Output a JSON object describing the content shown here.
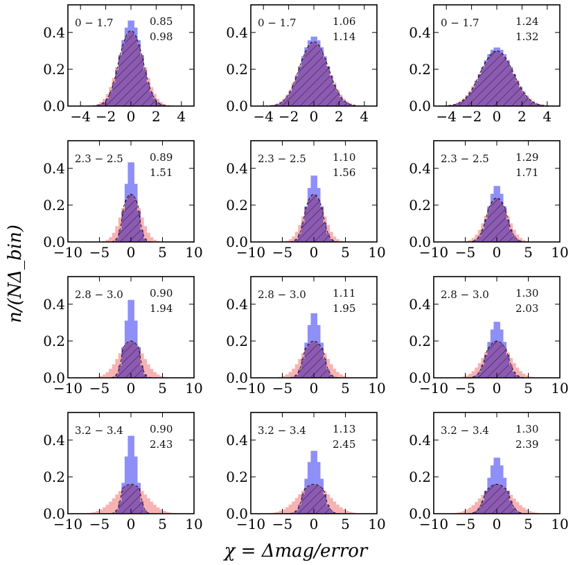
{
  "figure": {
    "xlabel": "χ = Δmag/error",
    "ylabel": "n/(NΔ_bin)"
  },
  "colors": {
    "blue": "#8f8ff8",
    "red": "#f7b3b3",
    "overlap": "#8c5ab3",
    "hatch": "#222222"
  },
  "chart_data": [
    {
      "type": "bar",
      "row": 0,
      "col": 0,
      "xlim": [
        -5,
        5
      ],
      "ylim": [
        0,
        0.55
      ],
      "xticks": [
        -4,
        -2,
        0,
        2,
        4
      ],
      "yticks": [
        0,
        0.2,
        0.4
      ],
      "range_label": "0 − 1.7",
      "value_top": "0.85",
      "value_bottom": "0.98",
      "series": [
        {
          "color": "blue",
          "peak": 0.47,
          "width": 0.85
        },
        {
          "color": "red",
          "peak": 0.41,
          "width": 0.98
        }
      ]
    },
    {
      "type": "bar",
      "row": 0,
      "col": 1,
      "xlim": [
        -5,
        5
      ],
      "ylim": [
        0,
        0.55
      ],
      "xticks": [
        -4,
        -2,
        0,
        2,
        4
      ],
      "yticks": [
        0,
        0.2,
        0.4
      ],
      "range_label": "0 − 1.7",
      "value_top": "1.06",
      "value_bottom": "1.14",
      "series": [
        {
          "color": "blue",
          "peak": 0.38,
          "width": 1.06
        },
        {
          "color": "red",
          "peak": 0.35,
          "width": 1.14
        }
      ]
    },
    {
      "type": "bar",
      "row": 0,
      "col": 2,
      "xlim": [
        -5,
        5
      ],
      "ylim": [
        0,
        0.55
      ],
      "xticks": [
        -4,
        -2,
        0,
        2,
        4
      ],
      "yticks": [
        0,
        0.2,
        0.4
      ],
      "range_label": "0 − 1.7",
      "value_top": "1.24",
      "value_bottom": "1.32",
      "series": [
        {
          "color": "blue",
          "peak": 0.32,
          "width": 1.24
        },
        {
          "color": "red",
          "peak": 0.3,
          "width": 1.32
        }
      ]
    },
    {
      "type": "bar",
      "row": 1,
      "col": 0,
      "xlim": [
        -10,
        10
      ],
      "ylim": [
        0,
        0.55
      ],
      "xticks": [
        -10,
        -5,
        0,
        5,
        10
      ],
      "yticks": [
        0,
        0.2,
        0.4
      ],
      "range_label": "2.3 − 2.5",
      "value_top": "0.89",
      "value_bottom": "1.51",
      "series": [
        {
          "color": "blue",
          "peak": 0.45,
          "width": 0.89
        },
        {
          "color": "red",
          "peak": 0.26,
          "width": 1.51
        }
      ]
    },
    {
      "type": "bar",
      "row": 1,
      "col": 1,
      "xlim": [
        -10,
        10
      ],
      "ylim": [
        0,
        0.55
      ],
      "xticks": [
        -10,
        -5,
        0,
        5,
        10
      ],
      "yticks": [
        0,
        0.2,
        0.4
      ],
      "range_label": "2.3 − 2.5",
      "value_top": "1.10",
      "value_bottom": "1.56",
      "series": [
        {
          "color": "blue",
          "peak": 0.37,
          "width": 1.1
        },
        {
          "color": "red",
          "peak": 0.26,
          "width": 1.56
        }
      ]
    },
    {
      "type": "bar",
      "row": 1,
      "col": 2,
      "xlim": [
        -10,
        10
      ],
      "ylim": [
        0,
        0.55
      ],
      "xticks": [
        -10,
        -5,
        0,
        5,
        10
      ],
      "yticks": [
        0,
        0.2,
        0.4
      ],
      "range_label": "2.3 − 2.5",
      "value_top": "1.29",
      "value_bottom": "1.71",
      "series": [
        {
          "color": "blue",
          "peak": 0.31,
          "width": 1.29
        },
        {
          "color": "red",
          "peak": 0.24,
          "width": 1.71
        }
      ]
    },
    {
      "type": "bar",
      "row": 2,
      "col": 0,
      "xlim": [
        -10,
        10
      ],
      "ylim": [
        0,
        0.55
      ],
      "xticks": [
        -10,
        -5,
        0,
        5,
        10
      ],
      "yticks": [
        0,
        0.2,
        0.4
      ],
      "range_label": "2.8 − 3.0",
      "value_top": "0.90",
      "value_bottom": "1.94",
      "series": [
        {
          "color": "blue",
          "peak": 0.44,
          "width": 0.9
        },
        {
          "color": "red",
          "peak": 0.2,
          "width": 1.94
        }
      ]
    },
    {
      "type": "bar",
      "row": 2,
      "col": 1,
      "xlim": [
        -10,
        10
      ],
      "ylim": [
        0,
        0.55
      ],
      "xticks": [
        -10,
        -5,
        0,
        5,
        10
      ],
      "yticks": [
        0,
        0.2,
        0.4
      ],
      "range_label": "2.8 − 3.0",
      "value_top": "1.11",
      "value_bottom": "1.95",
      "series": [
        {
          "color": "blue",
          "peak": 0.36,
          "width": 1.11
        },
        {
          "color": "red",
          "peak": 0.2,
          "width": 1.95
        }
      ]
    },
    {
      "type": "bar",
      "row": 2,
      "col": 2,
      "xlim": [
        -10,
        10
      ],
      "ylim": [
        0,
        0.55
      ],
      "xticks": [
        -10,
        -5,
        0,
        5,
        10
      ],
      "yticks": [
        0,
        0.2,
        0.4
      ],
      "range_label": "2.8 − 3.0",
      "value_top": "1.30",
      "value_bottom": "2.03",
      "series": [
        {
          "color": "blue",
          "peak": 0.31,
          "width": 1.3
        },
        {
          "color": "red",
          "peak": 0.2,
          "width": 2.03
        }
      ]
    },
    {
      "type": "bar",
      "row": 3,
      "col": 0,
      "xlim": [
        -10,
        10
      ],
      "ylim": [
        0,
        0.55
      ],
      "xticks": [
        -10,
        -5,
        0,
        5,
        10
      ],
      "yticks": [
        0,
        0.2,
        0.4
      ],
      "range_label": "3.2 − 3.4",
      "value_top": "0.90",
      "value_bottom": "2.43",
      "series": [
        {
          "color": "blue",
          "peak": 0.44,
          "width": 0.9
        },
        {
          "color": "red",
          "peak": 0.16,
          "width": 2.43
        }
      ]
    },
    {
      "type": "bar",
      "row": 3,
      "col": 1,
      "xlim": [
        -10,
        10
      ],
      "ylim": [
        0,
        0.55
      ],
      "xticks": [
        -10,
        -5,
        0,
        5,
        10
      ],
      "yticks": [
        0,
        0.2,
        0.4
      ],
      "range_label": "3.2 − 3.4",
      "value_top": "1.13",
      "value_bottom": "2.45",
      "series": [
        {
          "color": "blue",
          "peak": 0.35,
          "width": 1.13
        },
        {
          "color": "red",
          "peak": 0.16,
          "width": 2.45
        }
      ]
    },
    {
      "type": "bar",
      "row": 3,
      "col": 2,
      "xlim": [
        -10,
        10
      ],
      "ylim": [
        0,
        0.55
      ],
      "xticks": [
        -10,
        -5,
        0,
        5,
        10
      ],
      "yticks": [
        0,
        0.2,
        0.4
      ],
      "range_label": "3.2 − 3.4",
      "value_top": "1.30",
      "value_bottom": "2.39",
      "series": [
        {
          "color": "blue",
          "peak": 0.31,
          "width": 1.3
        },
        {
          "color": "red",
          "peak": 0.16,
          "width": 2.39
        }
      ]
    }
  ]
}
